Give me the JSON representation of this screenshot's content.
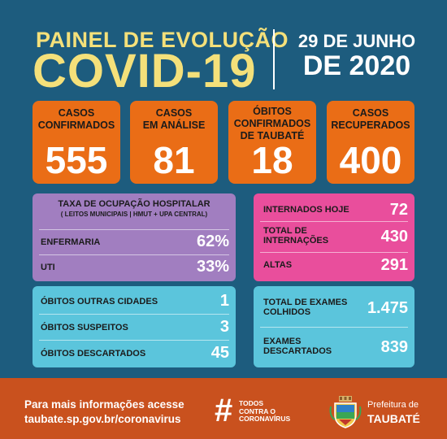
{
  "header": {
    "title_line1": "PAINEL DE EVOLUÇÃO",
    "title_line2": "COVID-19",
    "date_line1": "29 DE JUNHO",
    "date_line2": "DE 2020"
  },
  "cards": [
    {
      "label": "CASOS\nCONFIRMADOS",
      "value": "555"
    },
    {
      "label": "CASOS\nEM ANÁLISE",
      "value": "81"
    },
    {
      "label": "ÓBITOS\nCONFIRMADOS\nDE TAUBATÉ",
      "value": "18"
    },
    {
      "label": "CASOS\nRECUPERADOS",
      "value": "400"
    }
  ],
  "hospital": {
    "title": "TAXA DE OCUPAÇÃO HOSPITALAR",
    "subtitle": "( LEITOS MUNICIPAIS | HMUT + UPA CENTRAL)",
    "rows": [
      {
        "label": "ENFERMARIA",
        "value": "62%"
      },
      {
        "label": "UTI",
        "value": "33%"
      }
    ]
  },
  "internacoes": [
    {
      "label": "INTERNADOS HOJE",
      "value": "72"
    },
    {
      "label": "TOTAL DE\nINTERNAÇÕES",
      "value": "430"
    },
    {
      "label": "ALTAS",
      "value": "291"
    }
  ],
  "obitos": [
    {
      "label": "ÓBITOS OUTRAS CIDADES",
      "value": "1"
    },
    {
      "label": "ÓBITOS SUSPEITOS",
      "value": "3"
    },
    {
      "label": "ÓBITOS DESCARTADOS",
      "value": "45"
    }
  ],
  "exames": [
    {
      "label": "TOTAL DE EXAMES\nCOLHIDOS",
      "value": "1.475"
    },
    {
      "label": "EXAMES\nDESCARTADOS",
      "value": "839"
    }
  ],
  "footer": {
    "info_line1": "Para mais informações acesse",
    "info_line2": "taubate.sp.gov.br/coronavirus",
    "hashtag_symbol": "#",
    "hashtag_text": "TODOS\nCONTRA O\nCORONAVÍRUS",
    "prefeitura": "Prefeitura de",
    "city": "TAUBATÉ"
  },
  "colors": {
    "background": "#1d5c7e",
    "title_yellow": "#f4e07a",
    "orange_card": "#ea6d16",
    "purple_panel": "#a17ec0",
    "pink_panel": "#e94e9c",
    "blue_panel": "#5bc5dc",
    "footer": "#c9511e"
  },
  "icons": {
    "crest": "city-crest-icon"
  }
}
